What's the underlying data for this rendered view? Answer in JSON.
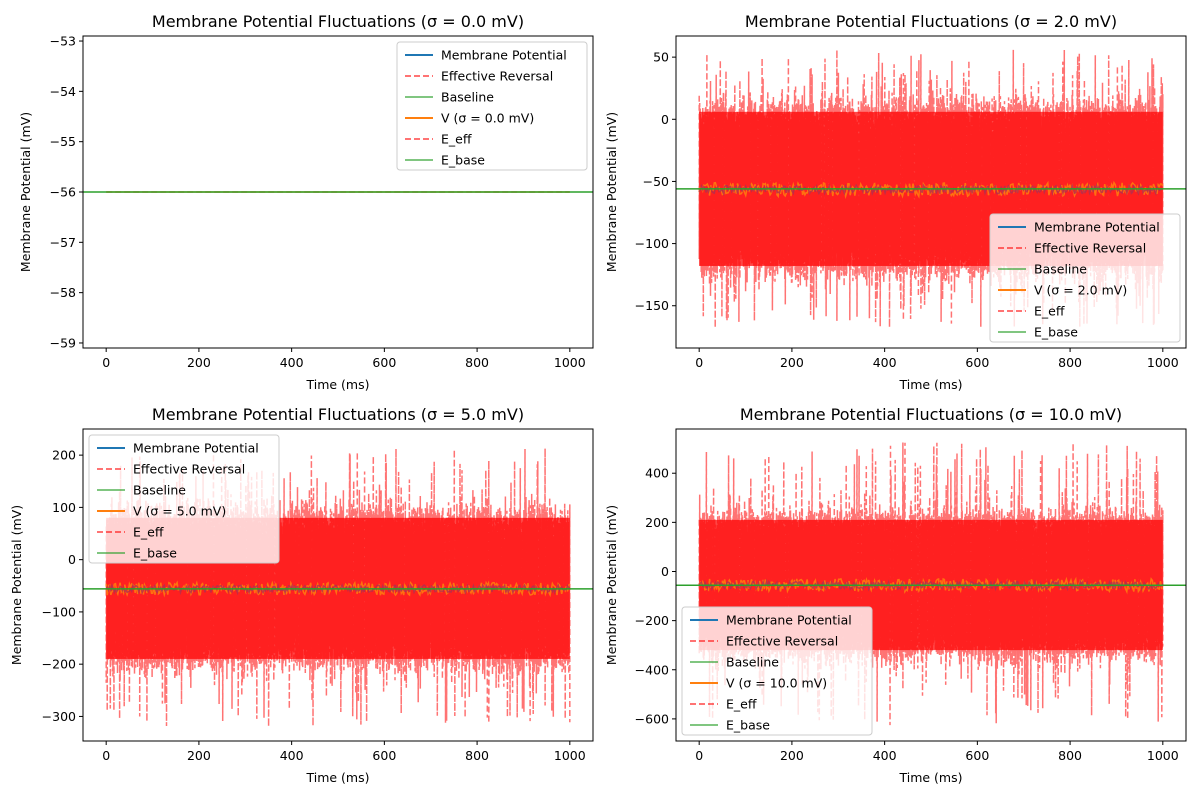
{
  "colors": {
    "membrane": "#1f77b4",
    "reversal": "#ff0000",
    "baseline": "#2ca02c",
    "voltage": "#ff7f0e",
    "axes": "#000000"
  },
  "chart_data": [
    {
      "type": "line",
      "title": "Membrane Potential Fluctuations (σ = 0.0 mV)",
      "xlabel": "Time (ms)",
      "ylabel": "Membrane Potential (mV)",
      "xlim": [
        -50,
        1050
      ],
      "ylim": [
        -59.1,
        -52.9
      ],
      "xticks": [
        0,
        200,
        400,
        600,
        800,
        1000
      ],
      "yticks": [
        -59,
        -58,
        -57,
        -56,
        -55,
        -54,
        -53
      ],
      "baseline": -56,
      "voltage_range": [
        -56,
        -56
      ],
      "noise_range": [
        -56,
        -56
      ],
      "spike_range": [
        -56,
        -56
      ],
      "legend_position": "upper right",
      "legend": [
        "Membrane Potential",
        "Effective Reversal",
        "Baseline",
        "V (σ = 0.0 mV)",
        "E_eff",
        "E_base"
      ],
      "grid": false
    },
    {
      "type": "line",
      "title": "Membrane Potential Fluctuations (σ = 2.0 mV)",
      "xlabel": "Time (ms)",
      "ylabel": "Membrane Potential (mV)",
      "xlim": [
        -50,
        1050
      ],
      "ylim": [
        -184,
        67
      ],
      "xticks": [
        0,
        200,
        400,
        600,
        800,
        1000
      ],
      "yticks": [
        -150,
        -100,
        -50,
        0,
        50
      ],
      "baseline": -56,
      "voltage_range": [
        -62,
        -51
      ],
      "noise_range": [
        -118,
        6
      ],
      "spike_range": [
        -168,
        56
      ],
      "legend_position": "lower right",
      "legend": [
        "Membrane Potential",
        "Effective Reversal",
        "Baseline",
        "V (σ = 2.0 mV)",
        "E_eff",
        "E_base"
      ],
      "grid": false
    },
    {
      "type": "line",
      "title": "Membrane Potential Fluctuations (σ = 5.0 mV)",
      "xlabel": "Time (ms)",
      "ylabel": "Membrane Potential (mV)",
      "xlim": [
        -50,
        1050
      ],
      "ylim": [
        -347,
        250
      ],
      "xticks": [
        0,
        200,
        400,
        600,
        800,
        1000
      ],
      "yticks": [
        -300,
        -200,
        -100,
        0,
        100,
        200
      ],
      "baseline": -56,
      "voltage_range": [
        -68,
        -44
      ],
      "noise_range": [
        -190,
        80
      ],
      "spike_range": [
        -320,
        215
      ],
      "legend_position": "upper left",
      "legend": [
        "Membrane Potential",
        "Effective Reversal",
        "Baseline",
        "V (σ = 5.0 mV)",
        "E_eff",
        "E_base"
      ],
      "grid": false
    },
    {
      "type": "line",
      "title": "Membrane Potential Fluctuations (σ = 10.0 mV)",
      "xlabel": "Time (ms)",
      "ylabel": "Membrane Potential (mV)",
      "xlim": [
        -50,
        1050
      ],
      "ylim": [
        -690,
        580
      ],
      "xticks": [
        0,
        200,
        400,
        600,
        800,
        1000
      ],
      "yticks": [
        -600,
        -400,
        -200,
        0,
        200,
        400
      ],
      "baseline": -56,
      "voltage_range": [
        -82,
        -30
      ],
      "noise_range": [
        -320,
        210
      ],
      "spike_range": [
        -635,
        525
      ],
      "legend_position": "lower left",
      "legend": [
        "Membrane Potential",
        "Effective Reversal",
        "Baseline",
        "V (σ = 10.0 mV)",
        "E_eff",
        "E_base"
      ],
      "grid": false
    }
  ]
}
